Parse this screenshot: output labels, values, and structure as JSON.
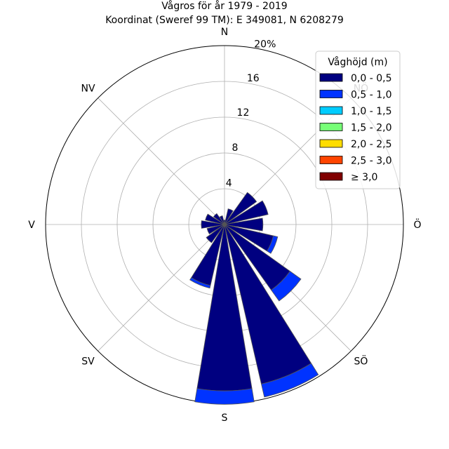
{
  "chart_data": {
    "type": "windrose",
    "title": "Vågros för år 1979 - 2019",
    "subtitle": "Koordinat (Sweref 99 TM): E 349081, N 6208279",
    "direction_labels": [
      "N",
      "NV",
      "V",
      "SV",
      "S",
      "SÖ",
      "Ö",
      "NÖ"
    ],
    "radial_ticks": [
      "4",
      "8",
      "12",
      "16",
      "20%"
    ],
    "radial_max": 20,
    "legend": {
      "title": "Våghöjd (m)",
      "placement": "top-right"
    },
    "bins": [
      {
        "label": "0,0 - 0,5",
        "color": "#000080"
      },
      {
        "label": "0,5 - 1,0",
        "color": "#0033ff"
      },
      {
        "label": "1,0 - 1,5",
        "color": "#00ccff"
      },
      {
        "label": "1,5 - 2,0",
        "color": "#77ff77"
      },
      {
        "label": "2,0 - 2,5",
        "color": "#ffdd00"
      },
      {
        "label": "2,5 - 3,0",
        "color": "#ff4400"
      },
      {
        "label": "≥ 3,0",
        "color": "#800000"
      }
    ],
    "sectors": [
      {
        "direction": 0,
        "values": [
          0.5,
          0,
          0,
          0,
          0,
          0,
          0
        ]
      },
      {
        "direction": 22.5,
        "values": [
          1.8,
          0,
          0,
          0,
          0,
          0,
          0
        ]
      },
      {
        "direction": 45,
        "values": [
          4.4,
          0,
          0,
          0,
          0,
          0,
          0
        ]
      },
      {
        "direction": 67.5,
        "values": [
          5.0,
          0,
          0,
          0,
          0,
          0,
          0
        ]
      },
      {
        "direction": 90,
        "values": [
          4.3,
          0,
          0,
          0,
          0,
          0,
          0
        ]
      },
      {
        "direction": 112.5,
        "values": [
          5.6,
          0.5,
          0,
          0,
          0,
          0,
          0
        ]
      },
      {
        "direction": 135,
        "values": [
          9.0,
          1.5,
          0,
          0,
          0,
          0,
          0
        ]
      },
      {
        "direction": 157.5,
        "values": [
          18.3,
          1.5,
          0,
          0,
          0,
          0,
          0
        ]
      },
      {
        "direction": 180,
        "values": [
          18.6,
          1.5,
          0,
          0,
          0,
          0,
          0
        ]
      },
      {
        "direction": 202.5,
        "values": [
          7.0,
          0.3,
          0,
          0,
          0,
          0,
          0
        ]
      },
      {
        "direction": 225,
        "values": [
          2.5,
          0,
          0,
          0,
          0,
          0,
          0
        ]
      },
      {
        "direction": 247.5,
        "values": [
          2.0,
          0,
          0,
          0,
          0,
          0,
          0
        ]
      },
      {
        "direction": 270,
        "values": [
          2.6,
          0,
          0,
          0,
          0,
          0,
          0
        ]
      },
      {
        "direction": 292.5,
        "values": [
          2.2,
          0,
          0,
          0,
          0,
          0,
          0
        ]
      },
      {
        "direction": 315,
        "values": [
          1.5,
          0,
          0,
          0,
          0,
          0,
          0
        ]
      },
      {
        "direction": 337.5,
        "values": [
          1.0,
          0,
          0,
          0,
          0,
          0,
          0
        ]
      }
    ]
  }
}
